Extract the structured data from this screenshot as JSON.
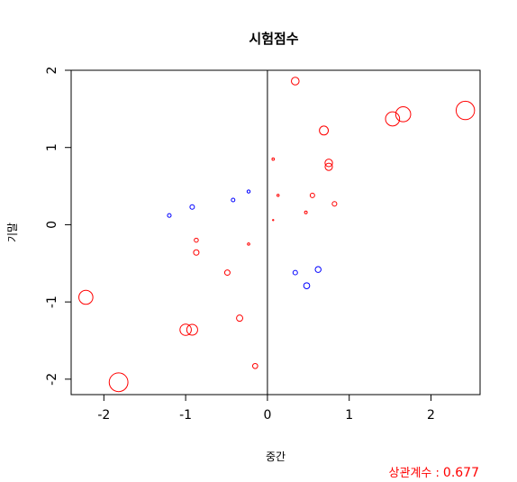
{
  "chart_data": {
    "type": "scatter",
    "title": "시험점수",
    "xlabel": "중간",
    "ylabel": "기말",
    "xlim": [
      -2.4,
      2.6
    ],
    "ylim": [
      -2.2,
      2.0
    ],
    "xticks": [
      -2,
      -1,
      0,
      1,
      2
    ],
    "yticks": [
      -2,
      -1,
      0,
      1,
      2
    ],
    "xtick_labels": [
      "-2",
      "-1",
      "0",
      "1",
      "2"
    ],
    "ytick_labels": [
      "-2",
      "-1",
      "0",
      "1",
      "2"
    ],
    "grid": false,
    "reference_lines": {
      "vertical_at_x": 0
    },
    "marker": "open-circle, size proportional to product of values",
    "colors": {
      "positive": "#ff0000",
      "negative": "#0000ff",
      "axes": "#000000"
    },
    "points": [
      {
        "x": 2.42,
        "y": 1.48
      },
      {
        "x": 1.66,
        "y": 1.43
      },
      {
        "x": 1.53,
        "y": 1.37
      },
      {
        "x": 0.34,
        "y": 1.86
      },
      {
        "x": 0.69,
        "y": 1.22
      },
      {
        "x": 0.75,
        "y": 0.8
      },
      {
        "x": 0.75,
        "y": 0.75
      },
      {
        "x": 0.07,
        "y": 0.85
      },
      {
        "x": 0.13,
        "y": 0.38
      },
      {
        "x": 0.55,
        "y": 0.38
      },
      {
        "x": 0.82,
        "y": 0.27
      },
      {
        "x": 0.47,
        "y": 0.16
      },
      {
        "x": 0.07,
        "y": 0.06
      },
      {
        "x": -0.23,
        "y": 0.43
      },
      {
        "x": -0.42,
        "y": 0.32
      },
      {
        "x": -0.92,
        "y": 0.23
      },
      {
        "x": -1.2,
        "y": 0.12
      },
      {
        "x": -0.87,
        "y": -0.2
      },
      {
        "x": -0.87,
        "y": -0.36
      },
      {
        "x": -0.23,
        "y": -0.25
      },
      {
        "x": -0.49,
        "y": -0.62
      },
      {
        "x": 0.34,
        "y": -0.62
      },
      {
        "x": 0.62,
        "y": -0.58
      },
      {
        "x": 0.48,
        "y": -0.79
      },
      {
        "x": -2.22,
        "y": -0.94
      },
      {
        "x": -1.0,
        "y": -1.36
      },
      {
        "x": -0.92,
        "y": -1.36
      },
      {
        "x": -0.34,
        "y": -1.21
      },
      {
        "x": -0.15,
        "y": -1.83
      },
      {
        "x": -1.82,
        "y": -2.04
      }
    ]
  },
  "correlation": {
    "label": "상관계수 :",
    "value": "0.677"
  }
}
